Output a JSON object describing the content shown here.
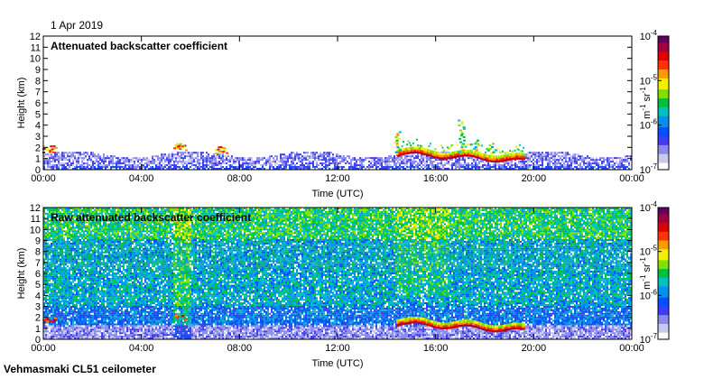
{
  "date": "1 Apr 2019",
  "footer": "Vehmasmaki CL51 ceilometer",
  "colors": {
    "scale": [
      "#ffffff",
      "#c9c9f0",
      "#8a8aee",
      "#3d3df5",
      "#0050ff",
      "#0090f0",
      "#00c0c0",
      "#00c040",
      "#80e000",
      "#f0f000",
      "#ff9900",
      "#ff3300",
      "#e00000",
      "#a00040",
      "#600060"
    ]
  },
  "chart_data": [
    {
      "type": "heatmap",
      "title": "Attenuated backscatter coefficient",
      "xlabel": "Time (UTC)",
      "ylabel": "Height (km)",
      "x_ticks": [
        "00:00",
        "04:00",
        "08:00",
        "12:00",
        "16:00",
        "20:00",
        "00:00"
      ],
      "x_range_hours": [
        0,
        24
      ],
      "y_ticks": [
        "0",
        "1",
        "2",
        "3",
        "4",
        "5",
        "6",
        "7",
        "8",
        "9",
        "10",
        "11",
        "12"
      ],
      "ylim": [
        0,
        12
      ],
      "colorbar": {
        "ticks": [
          {
            "base": "10",
            "exp": "-4"
          },
          {
            "base": "10",
            "exp": "-5"
          },
          {
            "base": "10",
            "exp": "-6"
          },
          {
            "base": "10",
            "exp": "-7"
          }
        ],
        "label": "m",
        "label_exp1": "-1",
        "label_mid": " sr",
        "label_exp2": "-1",
        "scale": "log"
      }
    },
    {
      "type": "heatmap",
      "title": "Raw attenuated backscatter coefficient",
      "xlabel": "Time (UTC)",
      "ylabel": "Height (km)",
      "x_ticks": [
        "00:00",
        "04:00",
        "08:00",
        "12:00",
        "16:00",
        "20:00",
        "00:00"
      ],
      "x_range_hours": [
        0,
        24
      ],
      "y_ticks": [
        "0",
        "1",
        "2",
        "3",
        "4",
        "5",
        "6",
        "7",
        "8",
        "9",
        "10",
        "11",
        "12"
      ],
      "ylim": [
        0,
        12
      ],
      "colorbar": {
        "ticks": [
          {
            "base": "10",
            "exp": "-4"
          },
          {
            "base": "10",
            "exp": "-5"
          },
          {
            "base": "10",
            "exp": "-6"
          },
          {
            "base": "10",
            "exp": "-7"
          }
        ],
        "label": "m",
        "label_exp1": "-1",
        "label_mid": " sr",
        "label_exp2": "-1",
        "scale": "log"
      }
    }
  ]
}
